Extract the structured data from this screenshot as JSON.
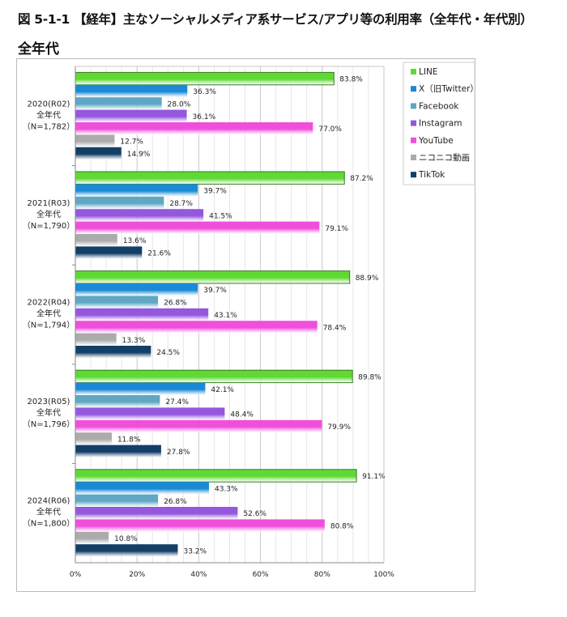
{
  "title": "図 5-1-1 【経年】主なソーシャルメディア系サービス/アプリ等の利用率（全年代・年代別）",
  "subtitle": "全年代",
  "chart_data": {
    "type": "bar",
    "orientation": "horizontal",
    "title": "図 5-1-1 【経年】主なソーシャルメディア系サービス/アプリ等の利用率（全年代・年代別）",
    "subtitle": "全年代",
    "categories": [
      [
        "2020(R02)",
        "全年代",
        "（N=1,782）"
      ],
      [
        "2021(R03)",
        "全年代",
        "（N=1,790）"
      ],
      [
        "2022(R04)",
        "全年代",
        "（N=1,794）"
      ],
      [
        "2023(R05)",
        "全年代",
        "（N=1,796）"
      ],
      [
        "2024(R06)",
        "全年代",
        "（N=1,800）"
      ]
    ],
    "series": [
      {
        "name": "LINE",
        "color": "#5fd934",
        "values": [
          83.8,
          87.2,
          88.9,
          89.8,
          91.1
        ]
      },
      {
        "name": "X（旧Twitter）",
        "color": "#1a8ad6",
        "values": [
          36.3,
          39.7,
          39.7,
          42.1,
          43.3
        ]
      },
      {
        "name": "Facebook",
        "color": "#5fa7c3",
        "values": [
          28.0,
          28.7,
          26.8,
          27.4,
          26.8
        ]
      },
      {
        "name": "Instagram",
        "color": "#9457dd",
        "values": [
          36.1,
          41.5,
          43.1,
          48.4,
          52.6
        ]
      },
      {
        "name": "YouTube",
        "color": "#f04fdc",
        "values": [
          77.0,
          79.1,
          78.4,
          79.9,
          80.8
        ]
      },
      {
        "name": "ニコニコ動画",
        "color": "#ababab",
        "values": [
          12.7,
          13.6,
          13.3,
          11.8,
          10.8
        ]
      },
      {
        "name": "TikTok",
        "color": "#123f66",
        "values": [
          14.9,
          21.6,
          24.5,
          27.8,
          33.2
        ]
      }
    ],
    "xlim": [
      0,
      100
    ],
    "xticks": [
      "0%",
      "20%",
      "40%",
      "60%",
      "80%",
      "100%"
    ],
    "value_suffix": "%",
    "grid": true,
    "legend": "right"
  }
}
